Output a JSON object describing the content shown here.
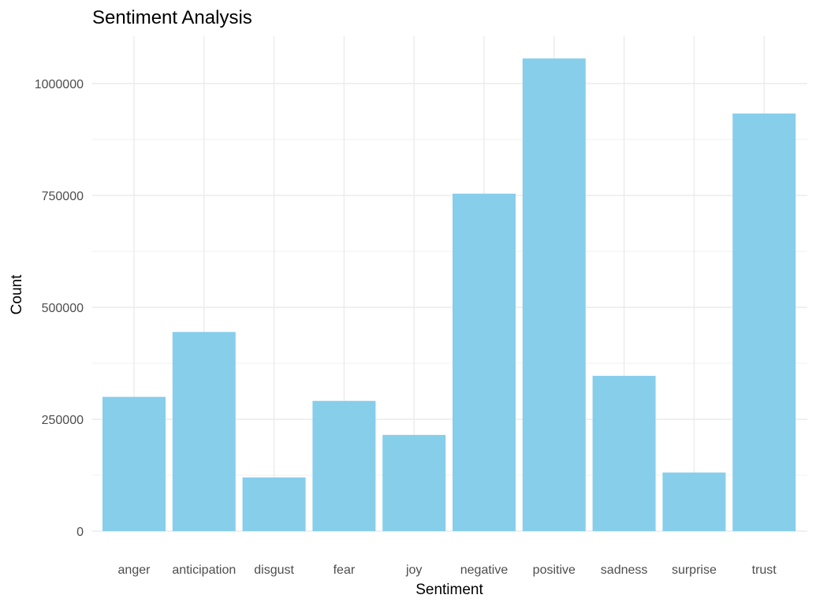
{
  "chart_data": {
    "type": "bar",
    "title": "Sentiment Analysis",
    "xlabel": "Sentiment",
    "ylabel": "Count",
    "categories": [
      "anger",
      "anticipation",
      "disgust",
      "fear",
      "joy",
      "negative",
      "positive",
      "sadness",
      "surprise",
      "trust"
    ],
    "values": [
      300000,
      445000,
      120000,
      291000,
      215000,
      754000,
      1056000,
      347000,
      131000,
      933000
    ],
    "ylim": [
      0,
      1100000
    ],
    "yticks": [
      0,
      250000,
      500000,
      750000,
      1000000
    ],
    "ytick_labels": [
      "0",
      "250000",
      "500000",
      "750000",
      "1000000"
    ],
    "grid": true,
    "legend": "none",
    "bar_color": "#87CEEB",
    "theme": "minimal"
  }
}
